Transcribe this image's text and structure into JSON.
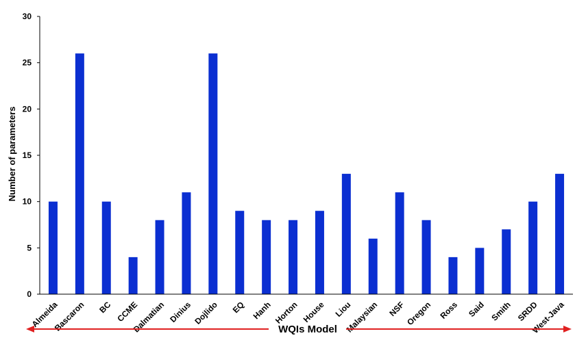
{
  "chart_data": {
    "type": "bar",
    "categories": [
      "Almeida",
      "Bascaron",
      "BC",
      "CCME",
      "Dalmatian",
      "Dinius",
      "Dojlido",
      "EQ",
      "Hanh",
      "Horton",
      "House",
      "Liou",
      "Malaysian",
      "NSF",
      "Oregon",
      "Ross",
      "Said",
      "Smith",
      "SRDD",
      "West-Java"
    ],
    "series": [
      {
        "values": [
          10,
          26,
          10,
          4,
          8,
          11,
          26,
          9,
          8,
          8,
          9,
          13,
          6,
          11,
          8,
          4,
          5,
          7,
          10,
          13
        ]
      }
    ],
    "title": "",
    "xlabel": "WQIs Model",
    "ylabel": "Number of parameters",
    "ylim": [
      0,
      30
    ],
    "yticks": [
      0,
      5,
      10,
      15,
      20,
      25,
      30
    ],
    "grid": false,
    "legend": "none",
    "colors": {
      "bar": "#0b2fd1",
      "axis": "#000000",
      "arrow": "#e02020"
    }
  }
}
